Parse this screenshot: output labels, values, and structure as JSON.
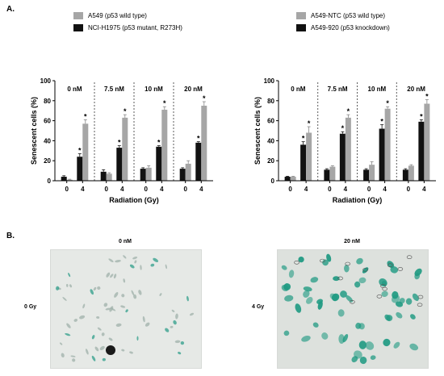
{
  "panels": {
    "a": "A.",
    "b": "B."
  },
  "colors": {
    "black": "#111111",
    "gray": "#a6a6a6"
  },
  "legends": [
    {
      "items": [
        {
          "label": "A549 (p53 wild type)",
          "color": "#a6a6a6"
        },
        {
          "label": "NCI-H1975 (p53 mutant, R273H)",
          "color": "#111111"
        }
      ]
    },
    {
      "items": [
        {
          "label": "A549-NTC (p53 wild type)",
          "color": "#a6a6a6"
        },
        {
          "label": "A549-920 (p53 knockdown)",
          "color": "#111111"
        }
      ]
    }
  ],
  "chart_data": [
    {
      "type": "bar",
      "xlabel": "Radiation (Gy)",
      "ylabel": "Senescent cells (%)",
      "ylim": [
        0,
        100
      ],
      "yticks": [
        "0",
        "20",
        "40",
        "60",
        "80",
        "100"
      ],
      "groups": [
        {
          "label": "0 nM",
          "categories": [
            "0",
            "4"
          ]
        },
        {
          "label": "7.5 nM",
          "categories": [
            "0",
            "4"
          ]
        },
        {
          "label": "10 nM",
          "categories": [
            "0",
            "4"
          ]
        },
        {
          "label": "20 nM",
          "categories": [
            "0",
            "4"
          ]
        }
      ],
      "series": [
        {
          "name": "NCI-H1975 (p53 mutant, R273H)",
          "color": "#111111",
          "values": [
            4,
            24,
            9,
            33,
            12,
            34,
            12,
            38
          ],
          "errors": [
            1,
            3,
            2,
            2,
            1,
            1,
            1,
            1
          ]
        },
        {
          "name": "A549 (p53 wild type)",
          "color": "#a6a6a6",
          "values": [
            1,
            57,
            7,
            63,
            13,
            71,
            17,
            75
          ],
          "errors": [
            0.5,
            4,
            1,
            3,
            2,
            3,
            3,
            4
          ]
        }
      ],
      "significance": [
        {
          "series": "NCI-H1975 (p53 mutant, R273H)",
          "index": 1,
          "label": "*"
        },
        {
          "series": "A549 (p53 wild type)",
          "index": 1,
          "label": "*"
        },
        {
          "series": "NCI-H1975 (p53 mutant, R273H)",
          "index": 3,
          "label": "*"
        },
        {
          "series": "A549 (p53 wild type)",
          "index": 3,
          "label": "*"
        },
        {
          "series": "NCI-H1975 (p53 mutant, R273H)",
          "index": 5,
          "label": "*"
        },
        {
          "series": "A549 (p53 wild type)",
          "index": 5,
          "label": "*"
        },
        {
          "series": "NCI-H1975 (p53 mutant, R273H)",
          "index": 7,
          "label": "*"
        },
        {
          "series": "A549 (p53 wild type)",
          "index": 7,
          "label": "*"
        }
      ]
    },
    {
      "type": "bar",
      "xlabel": "Radiation (Gy)",
      "ylabel": "Senescent cells (%)",
      "ylim": [
        0,
        100
      ],
      "yticks": [
        "0",
        "20",
        "40",
        "60",
        "80",
        "100"
      ],
      "groups": [
        {
          "label": "0 nM",
          "categories": [
            "0",
            "4"
          ]
        },
        {
          "label": "7.5 nM",
          "categories": [
            "0",
            "4"
          ]
        },
        {
          "label": "10 nM",
          "categories": [
            "0",
            "4"
          ]
        },
        {
          "label": "20 nM",
          "categories": [
            "0",
            "4"
          ]
        }
      ],
      "series": [
        {
          "name": "A549-920 (p53 knockdown)",
          "color": "#111111",
          "values": [
            4,
            36,
            11,
            47,
            11,
            52,
            11,
            59
          ],
          "errors": [
            0.5,
            3,
            1,
            2,
            1,
            4,
            1,
            2
          ]
        },
        {
          "name": "A549-NTC (p53 wild type)",
          "color": "#a6a6a6",
          "values": [
            4,
            48,
            14,
            63,
            16,
            72,
            15,
            77
          ],
          "errors": [
            0.5,
            6,
            1,
            3,
            3,
            2,
            1,
            4
          ]
        }
      ],
      "significance": [
        {
          "series": "A549-920 (p53 knockdown)",
          "index": 1,
          "label": "*"
        },
        {
          "series": "A549-NTC (p53 wild type)",
          "index": 1,
          "label": "*"
        },
        {
          "series": "A549-920 (p53 knockdown)",
          "index": 3,
          "label": "*"
        },
        {
          "series": "A549-NTC (p53 wild type)",
          "index": 3,
          "label": "*"
        },
        {
          "series": "A549-920 (p53 knockdown)",
          "index": 5,
          "label": "*"
        },
        {
          "series": "A549-NTC (p53 wild type)",
          "index": 5,
          "label": "*"
        },
        {
          "series": "A549-920 (p53 knockdown)",
          "index": 7,
          "label": "*"
        },
        {
          "series": "A549-NTC (p53 wild type)",
          "index": 7,
          "label": "*"
        }
      ]
    }
  ],
  "micrographs": [
    {
      "title": "0 nM",
      "row_label": "0 Gy",
      "background": "#e6e9e6",
      "stain": "#2f9e8a"
    },
    {
      "title": "20 nM",
      "row_label": "4 Gy",
      "background": "#dde1dd",
      "stain": "#1f9a82"
    }
  ]
}
